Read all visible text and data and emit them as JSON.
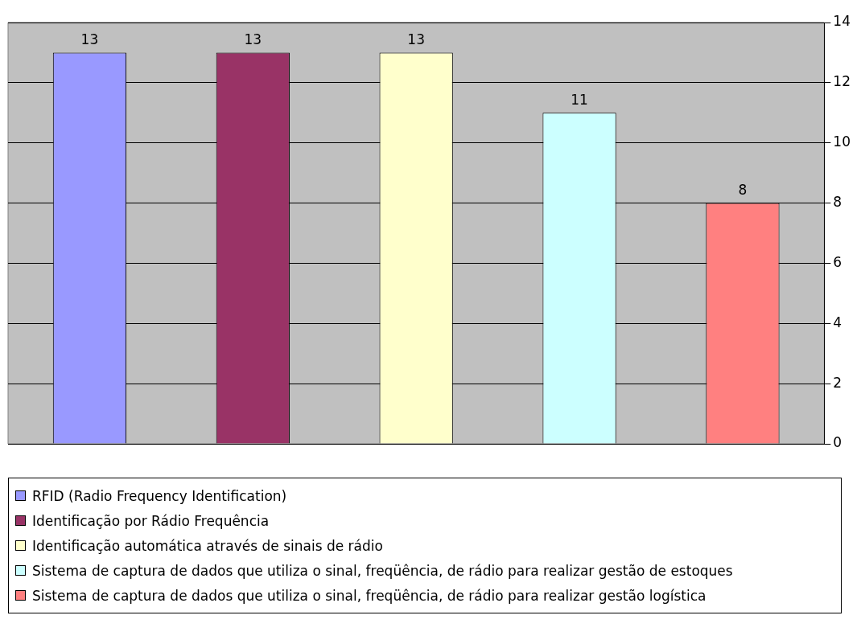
{
  "chart_data": {
    "type": "bar",
    "categories": [
      null,
      null,
      null,
      null,
      null
    ],
    "series": [
      {
        "name": "RFID (Radio Frequency Identification)",
        "color": "#9999ff",
        "values": [
          13,
          null,
          null,
          null,
          null
        ]
      },
      {
        "name": "Identificação por Rádio Frequência",
        "color": "#993366",
        "values": [
          null,
          13,
          null,
          null,
          null
        ]
      },
      {
        "name": "Identificação automática através de sinais de rádio",
        "color": "#ffffcc",
        "values": [
          null,
          null,
          13,
          null,
          null
        ]
      },
      {
        "name": "Sistema de captura de dados que utiliza o sinal, freqüência, de rádio para realizar gestão de estoques",
        "color": "#ccffff",
        "values": [
          null,
          null,
          null,
          11,
          null
        ]
      },
      {
        "name": "Sistema de captura de dados que utiliza o sinal, freqüência, de rádio para realizar gestão logística",
        "color": "#ff8080",
        "values": [
          null,
          null,
          null,
          null,
          8
        ]
      }
    ],
    "ylim": [
      0,
      14
    ],
    "yticks": [
      0,
      2,
      4,
      6,
      8,
      10,
      12,
      14
    ],
    "grid": "y",
    "legend": "bottom",
    "data_labels": true
  }
}
